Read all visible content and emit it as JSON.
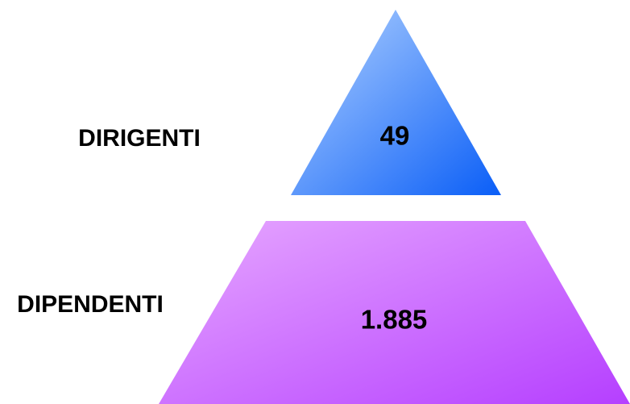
{
  "levels": [
    {
      "label": "DIRIGENTI",
      "value": "49"
    },
    {
      "label": "DIPENDENTI",
      "value": "1.885"
    }
  ]
}
